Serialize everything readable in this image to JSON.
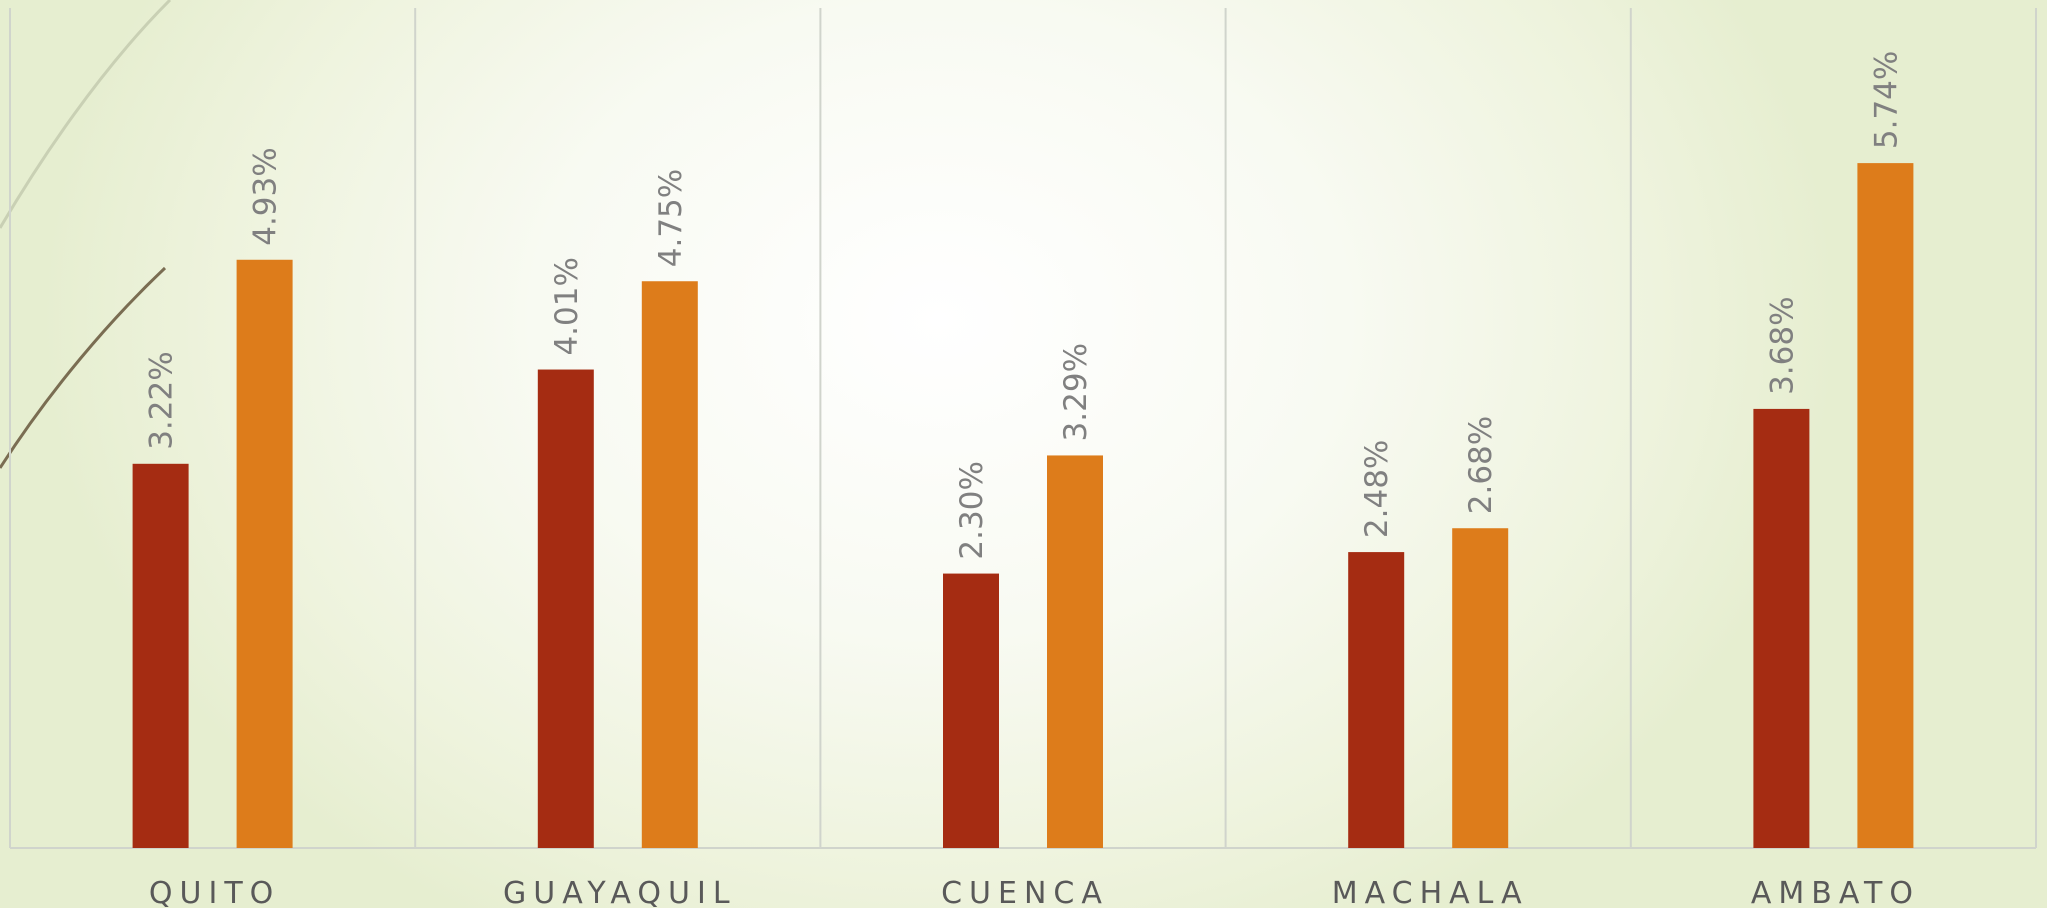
{
  "chart_data": {
    "type": "bar",
    "categories": [
      "QUITO",
      "GUAYAQUIL",
      "CUENCA",
      "MACHALA",
      "AMBATO"
    ],
    "series": [
      {
        "values": [
          3.22,
          4.01,
          2.3,
          2.48,
          3.68
        ],
        "labels": [
          "3.22%",
          "4.01%",
          "2.30%",
          "2.48%",
          "3.68%"
        ],
        "color": "#a52c12"
      },
      {
        "values": [
          4.93,
          4.75,
          3.29,
          2.68,
          5.74
        ],
        "labels": [
          "4.93%",
          "4.75%",
          "3.29%",
          "2.68%",
          "5.74%"
        ],
        "color": "#dd7c1b"
      }
    ],
    "ylim": [
      0,
      7.04
    ],
    "grid": "vertical",
    "legend": "none",
    "title": "",
    "xlabel": "",
    "ylabel": ""
  },
  "theme": {
    "background_accent": "#e6eed0",
    "gridline_color": "#d0d4cc",
    "category_text_color": "#595959",
    "value_text_color": "#808080"
  }
}
